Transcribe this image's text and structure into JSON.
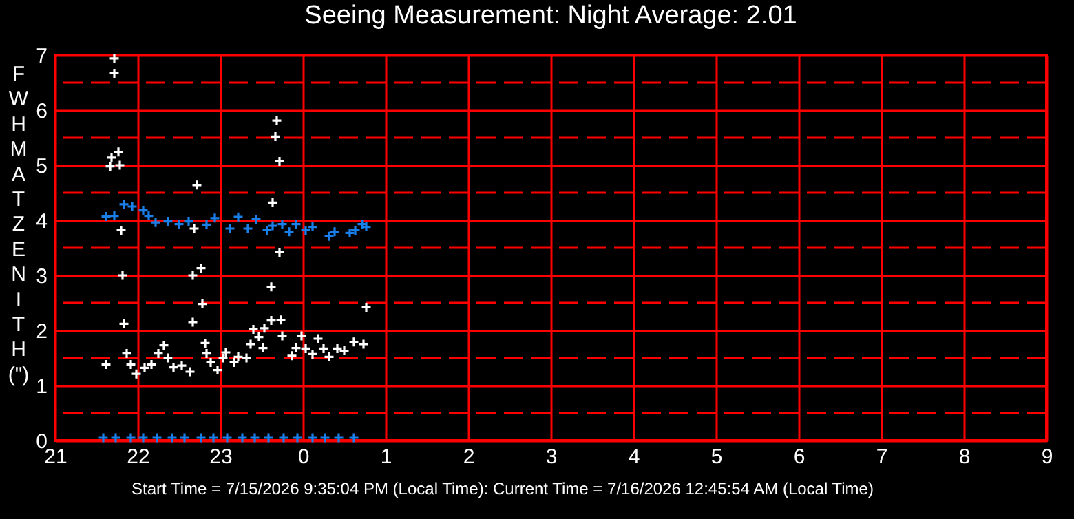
{
  "chart_data": {
    "type": "scatter",
    "title": "Seeing Measurement: Night Average: 2.01",
    "ylabel": "FWHM AT ZENITH (\")",
    "marker": "cross",
    "grid": true,
    "xlim": [
      "2026-07-15T21:00",
      "2026-07-16T09:00"
    ],
    "xticks": [
      {
        "value": "2026-07-15T21:00",
        "label": "21"
      },
      {
        "value": "2026-07-15T22:00",
        "label": "22"
      },
      {
        "value": "2026-07-15T23:00",
        "label": "23"
      },
      {
        "value": "2026-07-16T00:00",
        "label": "0"
      },
      {
        "value": "2026-07-16T01:00",
        "label": "1"
      },
      {
        "value": "2026-07-16T02:00",
        "label": "2"
      },
      {
        "value": "2026-07-16T03:00",
        "label": "3"
      },
      {
        "value": "2026-07-16T04:00",
        "label": "4"
      },
      {
        "value": "2026-07-16T05:00",
        "label": "5"
      },
      {
        "value": "2026-07-16T06:00",
        "label": "6"
      },
      {
        "value": "2026-07-16T07:00",
        "label": "7"
      },
      {
        "value": "2026-07-16T08:00",
        "label": "8"
      },
      {
        "value": "2026-07-16T09:00",
        "label": "9"
      }
    ],
    "ylim": [
      0,
      7
    ],
    "yticks": [
      0,
      1,
      2,
      3,
      4,
      5,
      6,
      7
    ],
    "ref_lines": [
      {
        "axis": "y",
        "value": 0.5,
        "color": "#ff0000",
        "line_style": "dashed"
      },
      {
        "axis": "y",
        "value": 1.5,
        "color": "#ff0000",
        "line_style": "dashed"
      },
      {
        "axis": "y",
        "value": 2.5,
        "color": "#ff0000",
        "line_style": "dashed"
      },
      {
        "axis": "y",
        "value": 3.5,
        "color": "#ff0000",
        "line_style": "dashed"
      },
      {
        "axis": "y",
        "value": 4.5,
        "color": "#ff0000",
        "line_style": "dashed"
      },
      {
        "axis": "y",
        "value": 5.5,
        "color": "#ff0000",
        "line_style": "dashed"
      },
      {
        "axis": "y",
        "value": 6.5,
        "color": "#ff0000",
        "line_style": "dashed"
      }
    ],
    "annotations": [
      "Start Time = 7/15/2026 9:35:04 PM (Local Time): Current Time = 7/16/2026 12:45:54 AM (Local Time)"
    ],
    "series": [
      {
        "color": "#1a7fe8",
        "x": [
          "2026-07-15T21:37",
          "2026-07-15T21:43",
          "2026-07-15T21:50",
          "2026-07-15T21:56",
          "2026-07-15T22:04",
          "2026-07-15T22:08",
          "2026-07-15T22:13",
          "2026-07-15T22:22",
          "2026-07-15T22:30",
          "2026-07-15T22:37",
          "2026-07-15T22:50",
          "2026-07-15T22:56",
          "2026-07-15T23:07",
          "2026-07-15T23:13",
          "2026-07-15T23:20",
          "2026-07-15T23:26",
          "2026-07-15T23:34",
          "2026-07-15T23:38",
          "2026-07-15T23:45",
          "2026-07-15T23:50",
          "2026-07-15T23:55",
          "2026-07-16T00:02",
          "2026-07-16T00:07",
          "2026-07-16T00:19",
          "2026-07-16T00:23",
          "2026-07-16T00:34",
          "2026-07-16T00:38",
          "2026-07-16T00:43",
          "2026-07-16T00:46"
        ],
        "values": [
          4.07,
          4.08,
          4.29,
          4.25,
          4.18,
          4.08,
          3.96,
          3.98,
          3.93,
          3.98,
          3.92,
          4.04,
          3.85,
          4.06,
          3.85,
          4.02,
          3.82,
          3.9,
          3.93,
          3.79,
          3.93,
          3.82,
          3.88,
          3.71,
          3.79,
          3.77,
          3.82,
          3.93,
          3.88
        ]
      },
      {
        "color": "#ffffff",
        "x": [
          "2026-07-15T21:37",
          "2026-07-15T21:52",
          "2026-07-15T21:55",
          "2026-07-15T21:59",
          "2026-07-15T22:05",
          "2026-07-15T22:10",
          "2026-07-15T22:15",
          "2026-07-15T22:19",
          "2026-07-15T22:22",
          "2026-07-15T22:26",
          "2026-07-15T22:32",
          "2026-07-15T22:38",
          "2026-07-15T22:49",
          "2026-07-15T22:50",
          "2026-07-15T22:53",
          "2026-07-15T22:58",
          "2026-07-15T23:02",
          "2026-07-15T23:04",
          "2026-07-15T23:10",
          "2026-07-15T23:13",
          "2026-07-15T23:19",
          "2026-07-15T23:22",
          "2026-07-15T23:24",
          "2026-07-15T23:28",
          "2026-07-15T23:31",
          "2026-07-15T23:32",
          "2026-07-15T23:37",
          "2026-07-15T23:45",
          "2026-07-15T23:52",
          "2026-07-15T23:55",
          "2026-07-15T23:59",
          "2026-07-16T00:02",
          "2026-07-16T00:07",
          "2026-07-16T00:11",
          "2026-07-16T00:15",
          "2026-07-16T00:19",
          "2026-07-16T00:25",
          "2026-07-16T00:30",
          "2026-07-16T00:37",
          "2026-07-16T00:44",
          "2026-07-15T21:49",
          "2026-07-15T21:50",
          "2026-07-15T22:40",
          "2026-07-15T22:40",
          "2026-07-15T22:46",
          "2026-07-15T22:47",
          "2026-07-15T23:43",
          "2026-07-15T23:37",
          "2026-07-15T23:44",
          "2026-07-16T00:46",
          "2026-07-15T21:43",
          "2026-07-15T21:43",
          "2026-07-15T21:46",
          "2026-07-15T21:41",
          "2026-07-15T21:40",
          "2026-07-15T21:47",
          "2026-07-15T21:48",
          "2026-07-15T22:43",
          "2026-07-15T22:41",
          "2026-07-15T23:41",
          "2026-07-15T23:40",
          "2026-07-15T23:43",
          "2026-07-15T23:38"
        ],
        "values": [
          1.38,
          1.58,
          1.38,
          1.21,
          1.32,
          1.38,
          1.58,
          1.73,
          1.5,
          1.33,
          1.36,
          1.25,
          1.77,
          1.58,
          1.42,
          1.28,
          1.5,
          1.6,
          1.42,
          1.52,
          1.5,
          1.75,
          2.02,
          1.88,
          1.68,
          2.04,
          2.18,
          1.9,
          1.54,
          1.68,
          1.9,
          1.67,
          1.57,
          1.85,
          1.67,
          1.52,
          1.67,
          1.63,
          1.79,
          1.75,
          3.0,
          2.12,
          2.15,
          3.0,
          3.13,
          2.48,
          3.42,
          2.79,
          2.19,
          2.42,
          6.94,
          6.67,
          5.24,
          5.14,
          4.98,
          5.0,
          3.82,
          4.64,
          3.85,
          5.81,
          5.52,
          5.07,
          4.32
        ]
      },
      {
        "color": "#1a7fe8",
        "x": [
          "2026-07-15T21:35",
          "2026-07-15T21:44",
          "2026-07-15T21:55",
          "2026-07-15T22:04",
          "2026-07-15T22:14",
          "2026-07-15T22:25",
          "2026-07-15T22:34",
          "2026-07-15T22:46",
          "2026-07-15T22:55",
          "2026-07-15T23:05",
          "2026-07-15T23:16",
          "2026-07-15T23:25",
          "2026-07-15T23:35",
          "2026-07-15T23:46",
          "2026-07-15T23:56",
          "2026-07-16T00:07",
          "2026-07-16T00:16",
          "2026-07-16T00:26",
          "2026-07-16T00:37"
        ],
        "values": [
          0.05,
          0.05,
          0.05,
          0.05,
          0.05,
          0.05,
          0.05,
          0.05,
          0.05,
          0.05,
          0.05,
          0.05,
          0.05,
          0.05,
          0.05,
          0.05,
          0.05,
          0.05,
          0.05
        ]
      }
    ]
  }
}
